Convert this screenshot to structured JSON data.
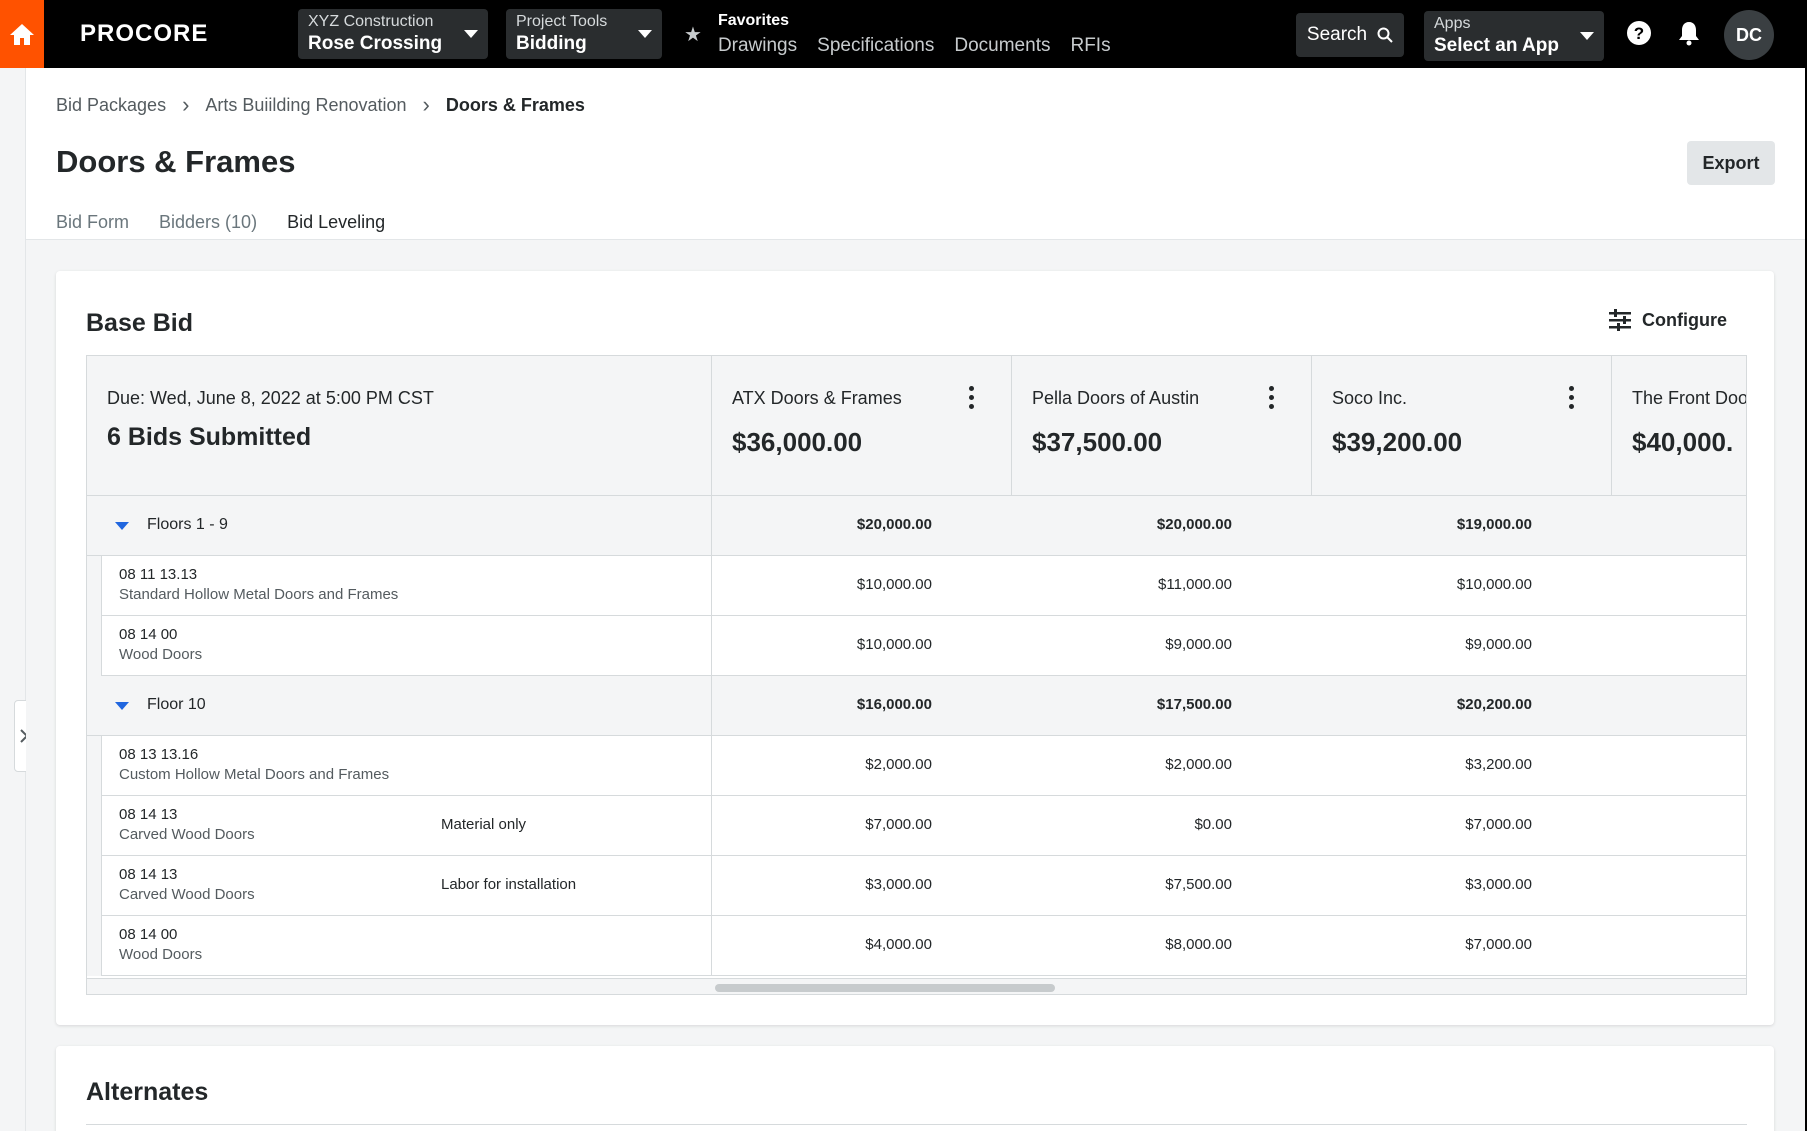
{
  "nav": {
    "logo": "PROCORE",
    "company": {
      "caption": "XYZ Construction",
      "value": "Rose Crossing"
    },
    "tool": {
      "caption": "Project Tools",
      "value": "Bidding"
    },
    "favorites": {
      "caption": "Favorites",
      "links": [
        "Drawings",
        "Specifications",
        "Documents",
        "RFIs"
      ]
    },
    "search_label": "Search",
    "apps": {
      "caption": "Apps",
      "value": "Select an App"
    },
    "avatar_initials": "DC"
  },
  "breadcrumb": [
    "Bid Packages",
    "Arts Buiilding Renovation",
    "Doors & Frames"
  ],
  "page_title": "Doors & Frames",
  "export_label": "Export",
  "tabs": [
    "Bid Form",
    "Bidders (10)",
    "Bid Leveling"
  ],
  "base_bid": {
    "title": "Base Bid",
    "configure_label": "Configure",
    "due": "Due: Wed, June 8, 2022 at 5:00 PM CST",
    "bids_submitted": "6 Bids Submitted",
    "bidders": [
      {
        "name": "ATX Doors & Frames",
        "total": "$36,000.00"
      },
      {
        "name": "Pella Doors of Austin",
        "total": "$37,500.00"
      },
      {
        "name": "Soco Inc.",
        "total": "$39,200.00"
      },
      {
        "name": "The Front Doo",
        "total": "$40,000."
      }
    ],
    "rows": [
      {
        "type": "group",
        "label": "Floors 1 - 9",
        "values": [
          "$20,000.00",
          "$20,000.00",
          "$19,000.00"
        ]
      },
      {
        "type": "item",
        "code": "08 11 13.13",
        "desc": "Standard Hollow Metal Doors and Frames",
        "note": "",
        "values": [
          "$10,000.00",
          "$11,000.00",
          "$10,000.00"
        ]
      },
      {
        "type": "item",
        "code": "08 14 00",
        "desc": "Wood Doors",
        "note": "",
        "values": [
          "$10,000.00",
          "$9,000.00",
          "$9,000.00"
        ]
      },
      {
        "type": "group",
        "label": "Floor 10",
        "values": [
          "$16,000.00",
          "$17,500.00",
          "$20,200.00"
        ]
      },
      {
        "type": "item",
        "code": "08 13 13.16",
        "desc": "Custom Hollow Metal Doors and Frames",
        "note": "",
        "values": [
          "$2,000.00",
          "$2,000.00",
          "$3,200.00"
        ]
      },
      {
        "type": "item",
        "code": "08 14 13",
        "desc": "Carved Wood Doors",
        "note": "Material only",
        "values": [
          "$7,000.00",
          "$0.00",
          "$7,000.00"
        ]
      },
      {
        "type": "item",
        "code": "08 14 13",
        "desc": "Carved Wood Doors",
        "note": "Labor for installation",
        "values": [
          "$3,000.00",
          "$7,500.00",
          "$3,000.00"
        ]
      },
      {
        "type": "item",
        "code": "08 14 00",
        "desc": "Wood Doors",
        "note": "",
        "values": [
          "$4,000.00",
          "$8,000.00",
          "$7,000.00"
        ]
      }
    ]
  },
  "alternates_title": "Alternates",
  "colors": {
    "accent": "#ff5200",
    "link_blue": "#2066df",
    "nav_bg": "#000000"
  }
}
